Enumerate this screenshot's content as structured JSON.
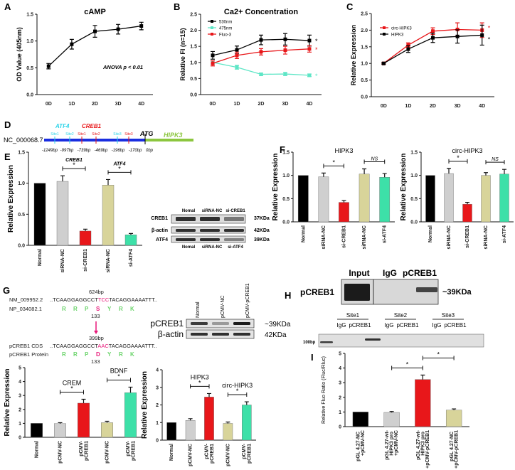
{
  "panel_labels": {
    "A": "A",
    "B": "B",
    "C": "C",
    "D": "D",
    "E": "E",
    "F": "F",
    "G": "G",
    "H": "H",
    "I": "I"
  },
  "colors": {
    "black": "#000000",
    "gray": "#cfcfcf",
    "red": "#e8171a",
    "khaki": "#d8d49a",
    "teal": "#3de0a8",
    "blue": "#1a2ee0",
    "green": "#8cc63f",
    "cyan": "#29d3e8",
    "magenta": "#e8197a"
  },
  "chart_data": [
    {
      "id": "A",
      "type": "line",
      "title": "cAMP",
      "ylabel": "OD Value (405nm)",
      "ylim": [
        0,
        1.5
      ],
      "yticks": [
        "0.0",
        "0.5",
        "1.0",
        "1.5"
      ],
      "categories": [
        "0D",
        "1D",
        "2D",
        "3D",
        "4D"
      ],
      "series": [
        {
          "values": [
            0.53,
            0.94,
            1.18,
            1.22,
            1.28
          ],
          "errors": [
            0.05,
            0.09,
            0.11,
            0.09,
            0.07
          ],
          "color": "#000000"
        }
      ],
      "annotation": "ANOVA p < 0.01",
      "legend": "none"
    },
    {
      "id": "B",
      "type": "line",
      "title": "Ca2+ Concentration",
      "ylabel": "Relative FI (n=15)",
      "ylim": [
        0,
        2.5
      ],
      "yticks": [
        "0.0",
        "0.5",
        "1.0",
        "1.5",
        "2.0",
        "2.5"
      ],
      "categories": [
        "0D",
        "1D",
        "2D",
        "3D",
        "4D"
      ],
      "legend": "top-left",
      "series": [
        {
          "name": "530nm",
          "values": [
            1.22,
            1.39,
            1.7,
            1.72,
            1.68
          ],
          "errors": [
            0.12,
            0.12,
            0.15,
            0.18,
            0.17
          ],
          "color": "#000000",
          "sig": "*"
        },
        {
          "name": "475nm",
          "values": [
            1.0,
            0.85,
            0.63,
            0.64,
            0.6
          ],
          "errors": [
            0.05,
            0.06,
            0.04,
            0.05,
            0.04
          ],
          "color": "#5ee6c6",
          "sig": "*"
        },
        {
          "name": "Fluo-3",
          "values": [
            0.97,
            1.22,
            1.33,
            1.38,
            1.42
          ],
          "errors": [
            0.08,
            0.1,
            0.1,
            0.12,
            0.1
          ],
          "color": "#e8171a",
          "sig": "*"
        }
      ]
    },
    {
      "id": "C",
      "type": "line",
      "title": "",
      "ylabel": "Relative Expression",
      "ylim": [
        0,
        2.5
      ],
      "yticks": [
        "0.0",
        "0.5",
        "1.0",
        "1.5",
        "2.0",
        "2.5"
      ],
      "categories": [
        "0D",
        "1D",
        "2D",
        "3D",
        "4D"
      ],
      "legend": "top-left",
      "series": [
        {
          "name": "circ-HIPK3",
          "values": [
            1.0,
            1.55,
            1.97,
            2.02,
            2.0
          ],
          "errors": [
            0.02,
            0.07,
            0.1,
            0.2,
            0.22
          ],
          "color": "#e8171a",
          "sig": "*"
        },
        {
          "name": "HIPK3",
          "values": [
            1.0,
            1.43,
            1.77,
            1.81,
            1.85
          ],
          "errors": [
            0.02,
            0.1,
            0.14,
            0.2,
            0.3
          ],
          "color": "#000000",
          "sig": "*"
        }
      ]
    },
    {
      "id": "E",
      "type": "bar",
      "title": "",
      "ylabel": "Relative Expression",
      "ylim": [
        0,
        1.5
      ],
      "yticks": [
        "0.0",
        "0.5",
        "1.0",
        "1.5"
      ],
      "categories": [
        "Normal",
        "siRNA-NC",
        "si-CREB1",
        "siRNA-NC",
        "si-ATF4"
      ],
      "values": [
        1.0,
        1.03,
        0.23,
        0.97,
        0.17
      ],
      "errors": [
        0,
        0.09,
        0.03,
        0.09,
        0.02
      ],
      "bar_colors": [
        "#000000",
        "#cfcfcf",
        "#e8171a",
        "#d8d49a",
        "#3de0a8"
      ],
      "brackets": [
        {
          "from": 1,
          "to": 2,
          "label": "CREB1",
          "mark": "*"
        },
        {
          "from": 3,
          "to": 4,
          "label": "ATF4",
          "mark": "*"
        }
      ]
    },
    {
      "id": "F1",
      "type": "bar",
      "title": "HIPK3",
      "ylabel": "Relative Expression",
      "ylim": [
        0,
        1.5
      ],
      "yticks": [
        "0.0",
        "0.5",
        "1.0",
        "1.5"
      ],
      "categories": [
        "Normal",
        "siRNA-NC",
        "si-CREB1",
        "siRNA-NC",
        "si-ATF4"
      ],
      "values": [
        1.0,
        0.97,
        0.42,
        1.03,
        0.96
      ],
      "errors": [
        0,
        0.08,
        0.04,
        0.11,
        0.08
      ],
      "bar_colors": [
        "#000000",
        "#cfcfcf",
        "#e8171a",
        "#d8d49a",
        "#3de0a8"
      ],
      "brackets": [
        {
          "from": 1,
          "to": 2,
          "label": "",
          "mark": "*"
        },
        {
          "from": 3,
          "to": 4,
          "label": "",
          "mark": "NS"
        }
      ]
    },
    {
      "id": "F2",
      "type": "bar",
      "title": "circ-HIPK3",
      "ylabel": "Relative Expression",
      "ylim": [
        0,
        1.5
      ],
      "yticks": [
        "0.0",
        "0.5",
        "1.0",
        "1.5"
      ],
      "categories": [
        "Normal",
        "siRNA-NC",
        "si-CREB1",
        "siRNA-NC",
        "si-ATF4"
      ],
      "values": [
        1.0,
        1.04,
        0.38,
        1.0,
        1.03
      ],
      "errors": [
        0,
        0.11,
        0.04,
        0.06,
        0.1
      ],
      "bar_colors": [
        "#000000",
        "#cfcfcf",
        "#e8171a",
        "#d8d49a",
        "#3de0a8"
      ],
      "brackets": [
        {
          "from": 1,
          "to": 2,
          "label": "",
          "mark": "*"
        },
        {
          "from": 3,
          "to": 4,
          "label": "",
          "mark": "NS"
        }
      ]
    },
    {
      "id": "G1",
      "type": "bar",
      "title": "",
      "ylabel": "Relative Expression",
      "ylim": [
        0,
        5
      ],
      "yticks": [
        "0",
        "1",
        "2",
        "3",
        "4",
        "5"
      ],
      "categories": [
        "Normal",
        "pCMV-NC",
        "pCMV-pCREB1",
        "pCMV-NC",
        "pCMV-pCREB1"
      ],
      "values": [
        1.0,
        0.98,
        2.45,
        1.05,
        3.2
      ],
      "errors": [
        0,
        0.07,
        0.28,
        0.1,
        0.4
      ],
      "bar_colors": [
        "#000000",
        "#cfcfcf",
        "#e8171a",
        "#d8d49a",
        "#3de0a8"
      ],
      "brackets": [
        {
          "from": 1,
          "to": 2,
          "label": "CREM",
          "mark": "*"
        },
        {
          "from": 3,
          "to": 4,
          "label": "BDNF",
          "mark": "*"
        }
      ]
    },
    {
      "id": "G2",
      "type": "bar",
      "title": "",
      "ylabel": "Relative Expression",
      "ylim": [
        0,
        4
      ],
      "yticks": [
        "0",
        "1",
        "2",
        "3",
        "4"
      ],
      "categories": [
        "Normal",
        "pCMV-NC",
        "pCMV-pCREB1",
        "pCMV-NC",
        "pCMV-pCREB1"
      ],
      "values": [
        1.0,
        1.12,
        2.45,
        0.95,
        2.0
      ],
      "errors": [
        0,
        0.1,
        0.2,
        0.08,
        0.18
      ],
      "bar_colors": [
        "#000000",
        "#cfcfcf",
        "#e8171a",
        "#d8d49a",
        "#3de0a8"
      ],
      "brackets": [
        {
          "from": 1,
          "to": 2,
          "label": "HIPK3",
          "mark": "*"
        },
        {
          "from": 3,
          "to": 4,
          "label": "circ-HIPK3",
          "mark": "*"
        }
      ]
    },
    {
      "id": "I",
      "type": "bar",
      "title": "",
      "ylabel": "Relative Fluo Ratio (Fluc/Rluc)",
      "ylim": [
        0,
        5
      ],
      "yticks": [
        "0",
        "1",
        "2",
        "3",
        "4",
        "5"
      ],
      "categories": [
        "pGL 4.27-NC +pCMV-NC",
        "pGL 4.27-wt-HIPK3 pro +pCMV-NC",
        "pGL 4.27-wt-HIPK3 pro +pCMV-pCREB1",
        "pGL 4.27-NC +pCMV-pCREB1"
      ],
      "values": [
        1.0,
        0.97,
        3.22,
        1.13
      ],
      "errors": [
        0,
        0.06,
        0.3,
        0.08
      ],
      "bar_colors": [
        "#000000",
        "#cfcfcf",
        "#e8171a",
        "#d8d49a"
      ],
      "brackets": [
        {
          "from": 1,
          "to": 2,
          "label": "",
          "mark": "*"
        },
        {
          "from": 2,
          "to": 3,
          "label": "",
          "mark": "*"
        }
      ]
    }
  ],
  "diagram_d": {
    "accession": "NC_000068.7",
    "atf4_label": "ATF4",
    "creb1_label": "CREB1",
    "atg": "ATG",
    "gene": "HIPK3",
    "sites": [
      {
        "name": "Site1",
        "factor": "ATF4",
        "pos": "-1249bp"
      },
      {
        "name": "Site2",
        "factor": "ATF4",
        "pos": "-997bp"
      },
      {
        "name": "Site1",
        "factor": "CREB1",
        "pos": "-739bp"
      },
      {
        "name": "Site2",
        "factor": "CREB1",
        "pos": "-469bp"
      },
      {
        "name": "Site3",
        "factor": "ATF4",
        "pos": "-196bp"
      },
      {
        "name": "Site3",
        "factor": "CREB1",
        "pos": "-170bp"
      }
    ],
    "zero": "0bp"
  },
  "blot_e": {
    "top_lanes": [
      "Nomal",
      "siRNA-NC",
      "si-CREB1"
    ],
    "bottom_lanes": [
      "Nomal",
      "siRNA-NC",
      "si-ATF4"
    ],
    "rows": [
      {
        "label": "CREB1",
        "size": "37KDa"
      },
      {
        "label": "β-actin",
        "size": "42KDa"
      },
      {
        "label": "ATF4",
        "size": "39KDa"
      }
    ]
  },
  "seq_g": {
    "ref_id": "NM_009952.2",
    "ref_bp": "624bp",
    "ref_seq_a": "..TCAAGGAGGCCT",
    "ref_seq_mut": "TCC",
    "ref_seq_b": "TACAGGAAAATTT..",
    "prot_id": "NP_034082.1",
    "prot": [
      "R",
      "R",
      "P",
      "S",
      "Y",
      "R",
      "K"
    ],
    "pos": "133",
    "cds_id": "pCREB1 CDS",
    "cds_bp": "399bp",
    "cds_seq_a": "..TCAAGGAGGCCT",
    "cds_seq_mut": "AAC",
    "cds_seq_b": "TACAGGAAAATTT..",
    "mprot_id": "pCREB1 Protein",
    "mprot": [
      "R",
      "R",
      "P",
      "D",
      "Y",
      "R",
      "K"
    ],
    "mpos": "133"
  },
  "blot_g": {
    "lanes": [
      "Normal",
      "pCMV-NC",
      "pCMV-pCREB1"
    ],
    "rows": [
      {
        "label": "pCREB1",
        "size": "~39KDa"
      },
      {
        "label": "β-actin",
        "size": "42KDa"
      }
    ]
  },
  "blot_h": {
    "lanes": [
      "Input",
      "IgG",
      "pCREB1"
    ],
    "row": "pCREB1",
    "size": "~39KDa",
    "sites": [
      "Site1",
      "Site2",
      "Site3"
    ],
    "sublanes": [
      "IgG",
      "pCREB1"
    ],
    "marker": "100bp"
  }
}
